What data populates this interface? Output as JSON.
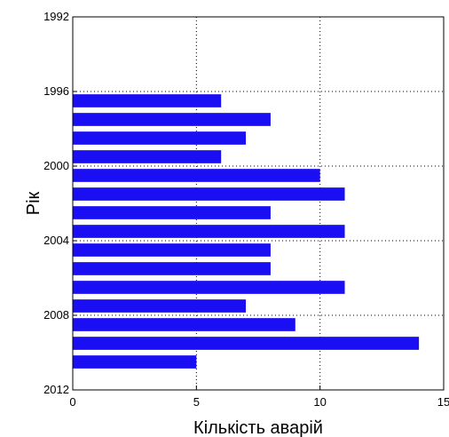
{
  "chart_data": {
    "type": "bar",
    "orientation": "horizontal",
    "title": "",
    "xlabel": "Кількість аварій",
    "ylabel": "Рік",
    "xlim": [
      0,
      15
    ],
    "ylim": [
      1992,
      2012
    ],
    "y_inverted": true,
    "x_ticks": [
      "0",
      "5",
      "10",
      "15"
    ],
    "y_ticks": [
      "1992",
      "1996",
      "2000",
      "2004",
      "2008",
      "2012"
    ],
    "grid": true,
    "bar_color": "#1a0ff2",
    "categories": [
      1996,
      1997,
      1998,
      1999,
      2000,
      2001,
      2002,
      2003,
      2004,
      2005,
      2006,
      2007,
      2008,
      2009,
      2010
    ],
    "values": [
      6,
      8,
      7,
      6,
      10,
      11,
      8,
      11,
      8,
      8,
      11,
      7,
      9,
      14,
      5
    ]
  }
}
